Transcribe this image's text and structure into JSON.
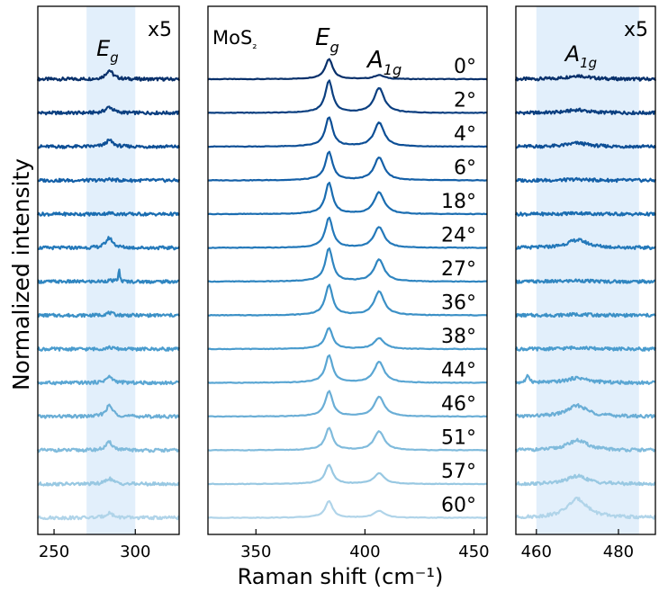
{
  "chart_data": {
    "type": "line",
    "ylabel": "Normalized intensity",
    "xlabel": "Raman shift (cm⁻¹)",
    "sample_label": "MoS₂",
    "angles": [
      "0°",
      "2°",
      "4°",
      "6°",
      "18°",
      "24°",
      "27°",
      "36°",
      "38°",
      "44°",
      "46°",
      "51°",
      "57°",
      "60°"
    ],
    "colors": [
      "#08306b",
      "#0b3f80",
      "#0d4f96",
      "#1460a8",
      "#1a6db1",
      "#2479ba",
      "#2f85c0",
      "#3b90c6",
      "#4a9cce",
      "#5aa6d3",
      "#6aaed6",
      "#80bbdc",
      "#98c8e2",
      "#b0d4e9"
    ],
    "panels": [
      {
        "id": "left",
        "xlim": [
          240,
          327
        ],
        "xticks": [
          250,
          300
        ],
        "highlight": [
          270,
          300
        ],
        "scale_label": "x5",
        "peak_label": "E_g",
        "peak_center": 284,
        "peak_heights": [
          0.45,
          0.3,
          0.32,
          0.05,
          0.05,
          0.5,
          0.05,
          0.12,
          0.08,
          0.3,
          0.55,
          0.4,
          0.28,
          0.25
        ],
        "spike": {
          "index": 6,
          "x": 290,
          "height": 0.6
        }
      },
      {
        "id": "middle",
        "xlim": [
          328,
          456
        ],
        "xticks": [
          350,
          400,
          450
        ],
        "Eg": 383.5,
        "A1g": 406.5,
        "peak_label_Eg": "E_g",
        "peak_label_A1g": "A_1g",
        "Eg_heights": [
          1.0,
          1.6,
          1.45,
          1.4,
          1.55,
          1.5,
          1.65,
          1.5,
          1.05,
          1.35,
          1.25,
          1.1,
          0.95,
          0.8
        ],
        "A1g_heights": [
          0.2,
          1.25,
          1.2,
          1.15,
          1.1,
          1.05,
          1.1,
          1.2,
          0.55,
          1.05,
          1.0,
          0.95,
          0.55,
          0.35
        ]
      },
      {
        "id": "right",
        "xlim": [
          455,
          489
        ],
        "xticks": [
          460,
          480
        ],
        "highlight": [
          460,
          485
        ],
        "scale_label": "x5",
        "peak_label": "A_1g",
        "peak_center": 470,
        "peak_heights": [
          0.18,
          0.15,
          0.18,
          0.05,
          0.05,
          0.4,
          0.05,
          0.05,
          0.08,
          0.25,
          0.55,
          0.5,
          0.4,
          0.95
        ],
        "spike": {
          "index": 9,
          "x": 458,
          "height": 0.35
        }
      }
    ]
  }
}
